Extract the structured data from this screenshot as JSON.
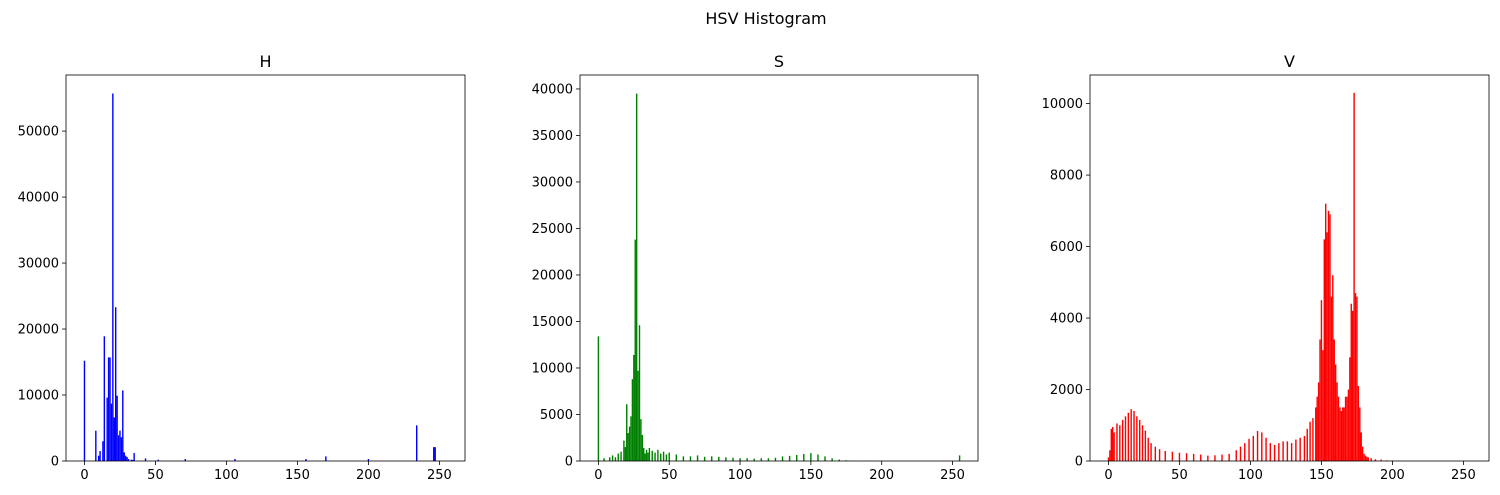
{
  "figure_title": "HSV Histogram",
  "chart_data": [
    {
      "type": "bar",
      "title": "H",
      "color": "#0000ff",
      "xlim": [
        -13,
        268
      ],
      "ylim": [
        0,
        58500
      ],
      "xticks": [
        0,
        50,
        100,
        150,
        200,
        250
      ],
      "yticks": [
        0,
        10000,
        20000,
        30000,
        40000,
        50000
      ],
      "series": [
        {
          "bins": [
            0,
            8,
            10,
            11,
            13,
            14,
            16,
            17,
            18,
            19,
            20,
            21,
            22,
            23,
            24,
            25,
            26,
            27,
            28,
            29,
            30,
            31,
            33,
            34,
            35,
            43,
            52,
            71,
            106,
            156,
            170,
            200,
            234,
            246,
            247
          ],
          "values": [
            15200,
            4600,
            800,
            1500,
            3000,
            18900,
            9600,
            15700,
            15700,
            8700,
            55700,
            6600,
            23300,
            9900,
            3900,
            4600,
            3600,
            10700,
            1300,
            800,
            600,
            300,
            200,
            150,
            1200,
            400,
            200,
            300,
            300,
            300,
            700,
            300,
            5400,
            2100,
            2100
          ]
        }
      ]
    },
    {
      "type": "bar",
      "title": "S",
      "color": "#008000",
      "xlim": [
        -13,
        268
      ],
      "ylim": [
        0,
        41500
      ],
      "xticks": [
        0,
        50,
        100,
        150,
        200,
        250
      ],
      "yticks": [
        0,
        5000,
        10000,
        15000,
        20000,
        25000,
        30000,
        35000,
        40000
      ],
      "series": [
        {
          "bins": [
            0,
            4,
            8,
            10,
            12,
            14,
            16,
            18,
            19,
            20,
            21,
            22,
            23,
            24,
            25,
            26,
            27,
            28,
            29,
            30,
            31,
            32,
            33,
            34,
            35,
            36,
            38,
            40,
            42,
            44,
            46,
            48,
            50,
            55,
            60,
            65,
            70,
            75,
            80,
            85,
            90,
            95,
            100,
            105,
            110,
            115,
            120,
            125,
            130,
            135,
            140,
            145,
            150,
            155,
            160,
            165,
            170,
            175,
            180,
            190,
            200,
            210,
            255
          ],
          "values": [
            13400,
            300,
            400,
            600,
            400,
            800,
            1000,
            2200,
            1500,
            6100,
            3000,
            3700,
            4800,
            8800,
            11400,
            23800,
            39500,
            9700,
            14600,
            4500,
            2800,
            1400,
            800,
            1200,
            900,
            1400,
            1100,
            900,
            1200,
            800,
            1000,
            700,
            900,
            700,
            500,
            500,
            600,
            450,
            500,
            450,
            400,
            350,
            300,
            300,
            250,
            300,
            300,
            350,
            500,
            550,
            650,
            750,
            850,
            700,
            500,
            300,
            150,
            80,
            40,
            30,
            20,
            10,
            600
          ]
        }
      ]
    },
    {
      "type": "bar",
      "title": "V",
      "color": "#ff0000",
      "xlim": [
        -13,
        268
      ],
      "ylim": [
        0,
        10800
      ],
      "xticks": [
        0,
        50,
        100,
        150,
        200,
        250
      ],
      "yticks": [
        0,
        2000,
        4000,
        6000,
        8000,
        10000
      ],
      "series": [
        {
          "bins": [
            0,
            1,
            2,
            3,
            4,
            6,
            8,
            10,
            12,
            14,
            16,
            18,
            20,
            22,
            24,
            26,
            28,
            30,
            33,
            36,
            40,
            45,
            50,
            55,
            60,
            65,
            70,
            75,
            80,
            85,
            90,
            93,
            96,
            99,
            102,
            105,
            108,
            111,
            114,
            117,
            120,
            123,
            126,
            129,
            132,
            135,
            138,
            140,
            142,
            144,
            146,
            147,
            148,
            149,
            150,
            151,
            152,
            153,
            154,
            155,
            156,
            157,
            158,
            159,
            160,
            161,
            162,
            163,
            164,
            165,
            166,
            167,
            168,
            169,
            170,
            171,
            172,
            173,
            174,
            175,
            176,
            177,
            178,
            179,
            180,
            181,
            182,
            183,
            185,
            188,
            192,
            196,
            200,
            205,
            215
          ],
          "values": [
            100,
            300,
            900,
            950,
            800,
            1050,
            1000,
            1150,
            1250,
            1350,
            1450,
            1400,
            1250,
            1150,
            1000,
            850,
            650,
            500,
            400,
            330,
            280,
            260,
            230,
            220,
            200,
            180,
            150,
            160,
            180,
            200,
            300,
            400,
            500,
            620,
            700,
            840,
            800,
            650,
            500,
            450,
            500,
            550,
            550,
            500,
            600,
            650,
            700,
            900,
            1100,
            1200,
            1500,
            1800,
            2200,
            3400,
            4500,
            3100,
            6200,
            7200,
            6400,
            7000,
            6900,
            4600,
            5200,
            3400,
            2700,
            2200,
            1800,
            1500,
            1400,
            1500,
            1500,
            1800,
            1800,
            2000,
            2900,
            4400,
            4200,
            10300,
            4700,
            4600,
            2100,
            1500,
            800,
            400,
            200,
            150,
            120,
            100,
            80,
            50,
            40,
            20,
            15,
            10,
            5
          ]
        }
      ]
    }
  ]
}
